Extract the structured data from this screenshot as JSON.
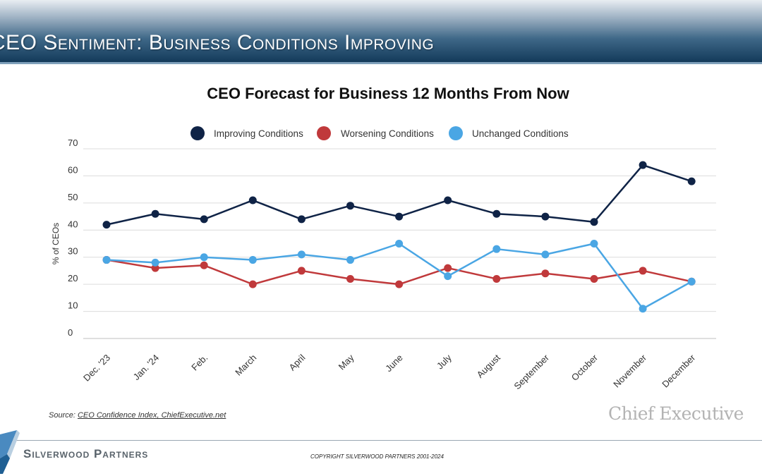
{
  "slide": {
    "title": "CEO Sentiment: Business Conditions Improving"
  },
  "source": {
    "prefix": "Source: ",
    "link_text": "CEO Confidence Index, ChiefExecutive.net"
  },
  "logos": {
    "chief_executive": "Chief Executive",
    "silverwood": "Silverwood Partners"
  },
  "footer": {
    "copyright": "COPYRIGHT SILVERWOOD PARTNERS 2001-2024"
  },
  "chart_data": {
    "type": "line",
    "title": "CEO Forecast for Business 12 Months From Now",
    "xlabel": "",
    "ylabel": "% of CEOs",
    "ylim": [
      0,
      70
    ],
    "yticks": [
      0,
      10,
      20,
      30,
      40,
      50,
      60,
      70
    ],
    "grid": true,
    "legend_position": "top",
    "categories": [
      "Dec. '23",
      "Jan. '24",
      "Feb.",
      "March",
      "April",
      "May",
      "June",
      "July",
      "August",
      "September",
      "October",
      "November",
      "December"
    ],
    "series": [
      {
        "name": "Improving Conditions",
        "color": "#0f2346",
        "values": [
          42,
          46,
          44,
          51,
          44,
          49,
          45,
          51,
          46,
          45,
          43,
          64,
          58
        ]
      },
      {
        "name": "Worsening Conditions",
        "color": "#c0393b",
        "values": [
          29,
          26,
          27,
          20,
          25,
          22,
          20,
          26,
          22,
          24,
          22,
          25,
          21
        ]
      },
      {
        "name": "Unchanged Conditions",
        "color": "#4aa6e4",
        "values": [
          29,
          28,
          30,
          29,
          31,
          29,
          35,
          23,
          33,
          31,
          35,
          11,
          21
        ]
      }
    ]
  }
}
